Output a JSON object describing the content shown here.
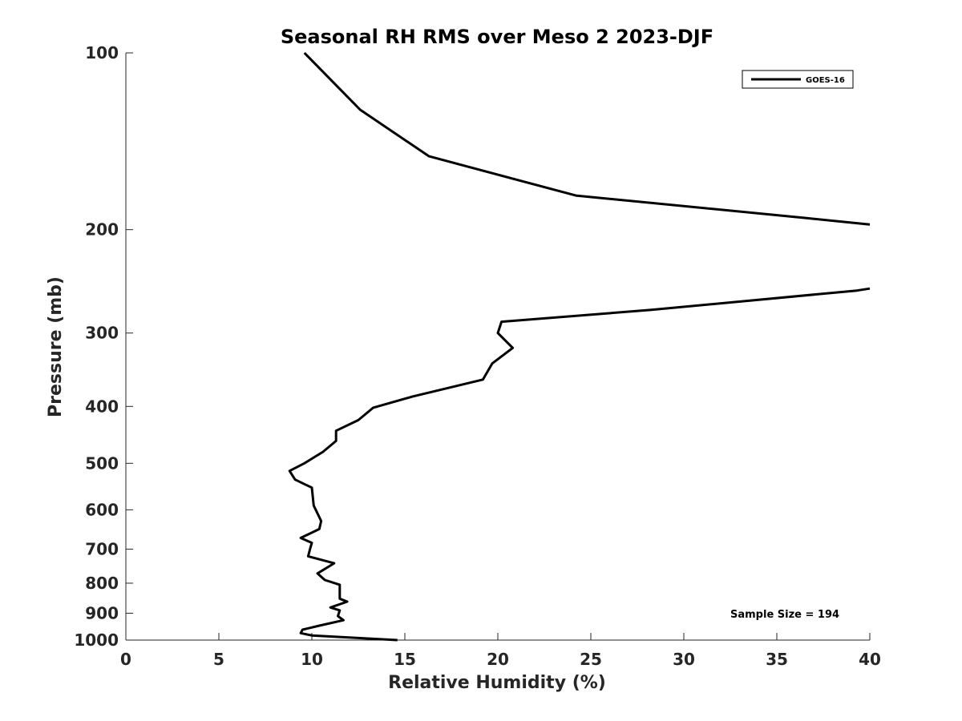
{
  "chart_data": {
    "type": "line",
    "title": "Seasonal RH RMS over Meso 2  2023-DJF",
    "xlabel": "Relative Humidity (%)",
    "ylabel": "Pressure (mb)",
    "xlim": [
      0,
      40
    ],
    "ylim": [
      100,
      1000
    ],
    "y_scale": "log",
    "y_reversed": true,
    "x_ticks": [
      0,
      5,
      10,
      15,
      20,
      25,
      30,
      35,
      40
    ],
    "x_tick_labels": [
      "0",
      "5",
      "10",
      "15",
      "20",
      "25",
      "30",
      "35",
      "40"
    ],
    "y_ticks": [
      100,
      200,
      300,
      400,
      500,
      600,
      700,
      800,
      900,
      1000
    ],
    "y_tick_labels": [
      "100",
      "200",
      "300",
      "400",
      "500",
      "600",
      "700",
      "800",
      "900",
      "1000"
    ],
    "grid": false,
    "legend_position": "top-right",
    "series": [
      {
        "name": "GOES-16",
        "color": "#000000",
        "points": [
          [
            9.6,
            100
          ],
          [
            12.6,
            125
          ],
          [
            16.3,
            150
          ],
          [
            24.2,
            175
          ],
          [
            36.5,
            191
          ],
          [
            40,
            196
          ],
          [
            null,
            null
          ],
          [
            40,
            252
          ],
          [
            39.3,
            254
          ],
          [
            28.2,
            274
          ],
          [
            20.2,
            287
          ],
          [
            20.0,
            300
          ],
          [
            20.8,
            318
          ],
          [
            19.7,
            338
          ],
          [
            19.2,
            360
          ],
          [
            15.4,
            385
          ],
          [
            13.3,
            402
          ],
          [
            12.5,
            422
          ],
          [
            11.3,
            440
          ],
          [
            11.3,
            458
          ],
          [
            10.6,
            478
          ],
          [
            9.6,
            500
          ],
          [
            8.8,
            515
          ],
          [
            9.1,
            533
          ],
          [
            10.0,
            550
          ],
          [
            10.1,
            590
          ],
          [
            10.5,
            627
          ],
          [
            10.4,
            647
          ],
          [
            9.4,
            670
          ],
          [
            10.0,
            683
          ],
          [
            9.9,
            700
          ],
          [
            9.8,
            720
          ],
          [
            11.2,
            740
          ],
          [
            10.3,
            770
          ],
          [
            10.7,
            790
          ],
          [
            11.5,
            805
          ],
          [
            11.5,
            850
          ],
          [
            11.9,
            860
          ],
          [
            11.0,
            880
          ],
          [
            11.5,
            890
          ],
          [
            11.4,
            910
          ],
          [
            11.7,
            925
          ],
          [
            10.4,
            945
          ],
          [
            9.5,
            960
          ],
          [
            9.4,
            973
          ],
          [
            10.0,
            982
          ],
          [
            14.6,
            1000
          ]
        ]
      }
    ],
    "annotation": "Sample Size = 194"
  }
}
